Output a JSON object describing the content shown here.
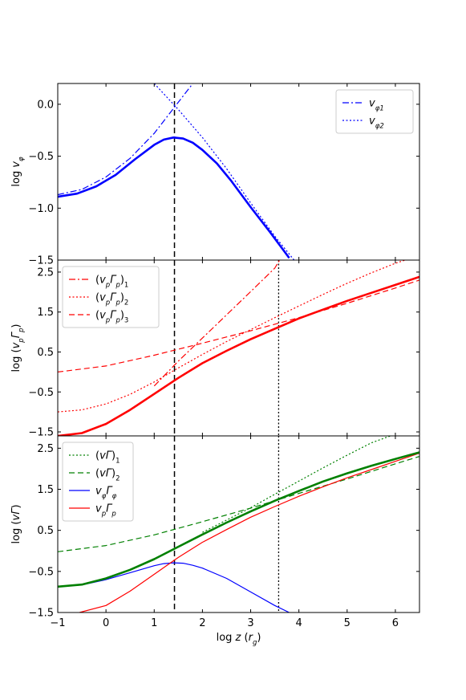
{
  "x_axis": {
    "label": "log z (r_g)",
    "label_parts": {
      "pre": "log ",
      "var": "z",
      "open": " (",
      "sym": "r",
      "sub": "g",
      "close": ")"
    },
    "range": [
      -1,
      6.5
    ],
    "ticks": [
      -1,
      0,
      1,
      2,
      3,
      4,
      5,
      6
    ],
    "tick_labels": [
      "−1",
      "0",
      "1",
      "2",
      "3",
      "4",
      "5",
      "6"
    ]
  },
  "chart_data": [
    {
      "type": "line",
      "ylabel": "log v_φ",
      "ylabel_parts": {
        "pre": "log ",
        "sym": "v",
        "sub": "φ"
      },
      "ylim": [
        -1.5,
        0.2
      ],
      "yticks": [
        -1.5,
        -1.0,
        -0.5,
        0.0
      ],
      "ytick_labels": [
        "−1.5",
        "−1.0",
        "−0.5",
        "0.0"
      ],
      "legend": "upper-right",
      "series": [
        {
          "name": "(v_φ)_1",
          "legend_label": {
            "sym": "v",
            "sub1": "φ",
            "sub2": "1"
          },
          "style": "dashdot",
          "color": "#0000ff",
          "width": 1.2,
          "x": [
            -1,
            -0.5,
            0,
            0.5,
            1,
            1.4,
            1.7,
            2.0
          ],
          "y": [
            -0.87,
            -0.82,
            -0.7,
            -0.52,
            -0.28,
            -0.04,
            0.14,
            0.32
          ]
        },
        {
          "name": "(v_φ)_2",
          "legend_label": {
            "sym": "v",
            "sub1": "φ",
            "sub2": "2"
          },
          "style": "dotted",
          "color": "#0000ff",
          "width": 1.2,
          "x": [
            1.0,
            1.5,
            2.0,
            2.5,
            3.0,
            3.5,
            3.9
          ],
          "y": [
            0.2,
            -0.05,
            -0.32,
            -0.62,
            -0.95,
            -1.27,
            -1.5
          ]
        },
        {
          "name": "",
          "style": "solid",
          "color": "#0000ff",
          "width": 2.6,
          "x": [
            -1,
            -0.6,
            -0.2,
            0.2,
            0.6,
            1.0,
            1.2,
            1.4,
            1.6,
            1.8,
            2.0,
            2.3,
            2.6,
            3.0,
            3.4,
            3.8
          ],
          "y": [
            -0.89,
            -0.86,
            -0.79,
            -0.68,
            -0.53,
            -0.39,
            -0.34,
            -0.32,
            -0.33,
            -0.37,
            -0.44,
            -0.57,
            -0.74,
            -0.99,
            -1.23,
            -1.48
          ]
        }
      ],
      "vlines": [
        {
          "x": 1.42,
          "style": "dashed",
          "color": "#000000",
          "width": 1.5
        }
      ]
    },
    {
      "type": "line",
      "ylabel": "log (v_pΓ_p)",
      "ylabel_parts": {
        "pre": "log (",
        "sym": "v",
        "sub": "p",
        "sym2": "Γ",
        "sub2": "p",
        "close": ")"
      },
      "ylim": [
        -1.6,
        2.8
      ],
      "yticks": [
        -1.5,
        -0.5,
        0.5,
        1.5,
        2.5
      ],
      "ytick_labels": [
        "−1.5",
        "−0.5",
        "0.5",
        "1.5",
        "2.5"
      ],
      "legend": "upper-left",
      "series": [
        {
          "name": "(v_pΓ_p)_1",
          "legend_label": {
            "sym": "v",
            "sub1": "p",
            "sym2": "Γ",
            "sub2": "p",
            "sub3": "1"
          },
          "style": "dashdot",
          "color": "#ff0000",
          "width": 1.2,
          "x": [
            1.0,
            1.5,
            2.0,
            2.5,
            3.0,
            3.5,
            3.6
          ],
          "y": [
            -0.35,
            0.27,
            0.85,
            1.43,
            2.01,
            2.6,
            2.8
          ]
        },
        {
          "name": "(v_pΓ_p)_2",
          "legend_label": {
            "sym": "v",
            "sub1": "p",
            "sym2": "Γ",
            "sub2": "p",
            "sub3": "2"
          },
          "style": "dotted",
          "color": "#ff0000",
          "width": 1.2,
          "x": [
            -1,
            -0.5,
            0,
            0.5,
            1,
            1.5,
            2,
            2.5,
            3,
            3.5,
            4,
            4.5,
            5,
            5.5,
            6,
            6.2
          ],
          "y": [
            -1.0,
            -0.95,
            -0.8,
            -0.56,
            -0.25,
            0.1,
            0.44,
            0.76,
            1.06,
            1.36,
            1.65,
            1.94,
            2.22,
            2.48,
            2.72,
            2.8
          ]
        },
        {
          "name": "(v_pΓ_p)_3",
          "legend_label": {
            "sym": "v",
            "sub1": "p",
            "sym2": "Γ",
            "sub2": "p",
            "sub3": "3"
          },
          "style": "dashed",
          "color": "#ff0000",
          "width": 1.2,
          "x": [
            -1,
            0,
            1,
            2,
            3,
            4,
            5,
            6,
            6.5
          ],
          "y": [
            0.0,
            0.15,
            0.42,
            0.72,
            1.03,
            1.36,
            1.72,
            2.1,
            2.3
          ]
        },
        {
          "name": "",
          "style": "solid",
          "color": "#ff0000",
          "width": 2.6,
          "x": [
            -1,
            -0.5,
            0,
            0.5,
            1,
            1.5,
            2,
            2.5,
            3,
            3.5,
            4,
            4.5,
            5,
            5.5,
            6,
            6.5
          ],
          "y": [
            -1.6,
            -1.53,
            -1.3,
            -0.95,
            -0.55,
            -0.15,
            0.22,
            0.53,
            0.82,
            1.08,
            1.34,
            1.56,
            1.78,
            1.98,
            2.18,
            2.38
          ]
        }
      ],
      "vlines": [
        {
          "x": 1.42,
          "style": "dashed",
          "color": "#000000",
          "width": 1.5
        },
        {
          "x": 3.58,
          "style": "dotted",
          "color": "#000000",
          "width": 1.3
        }
      ]
    },
    {
      "type": "line",
      "ylabel": "log (vΓ)",
      "ylabel_parts": {
        "pre": "log (",
        "sym": "v",
        "sym2": "Γ",
        "close": ")"
      },
      "ylim": [
        -1.5,
        2.8
      ],
      "yticks": [
        -1.5,
        -0.5,
        0.5,
        1.5,
        2.5
      ],
      "ytick_labels": [
        "−1.5",
        "−0.5",
        "0.5",
        "1.5",
        "2.5"
      ],
      "legend": "upper-left",
      "series": [
        {
          "name": "(vΓ)_1",
          "legend_label": {
            "sym": "v",
            "sym2": "Γ",
            "sub3": "1"
          },
          "style": "dotted",
          "color": "#008000",
          "width": 1.2,
          "x": [
            2.0,
            2.5,
            3.0,
            3.5,
            4.0,
            4.5,
            5.0,
            5.5,
            5.9
          ],
          "y": [
            0.45,
            0.75,
            1.05,
            1.38,
            1.7,
            2.02,
            2.33,
            2.63,
            2.8
          ]
        },
        {
          "name": "(vΓ)_2",
          "legend_label": {
            "sym": "v",
            "sym2": "Γ",
            "sub3": "2"
          },
          "style": "dashed",
          "color": "#008000",
          "width": 1.2,
          "x": [
            -1,
            0,
            1,
            2,
            3,
            4,
            5,
            6,
            6.5
          ],
          "y": [
            -0.02,
            0.13,
            0.39,
            0.71,
            1.04,
            1.4,
            1.75,
            2.12,
            2.3
          ]
        },
        {
          "name": "v_φΓ_φ",
          "legend_label": {
            "sym": "v",
            "sub1": "φ",
            "sym2": "Γ",
            "sub2": "φ"
          },
          "style": "solid",
          "color": "#0000ff",
          "width": 1.2,
          "x": [
            -1,
            -0.5,
            0,
            0.5,
            1,
            1.2,
            1.4,
            1.6,
            1.8,
            2.0,
            2.5,
            3.0,
            3.5,
            3.8
          ],
          "y": [
            -0.87,
            -0.83,
            -0.7,
            -0.53,
            -0.36,
            -0.31,
            -0.29,
            -0.3,
            -0.35,
            -0.42,
            -0.67,
            -1.0,
            -1.33,
            -1.5
          ]
        },
        {
          "name": "v_pΓ_p",
          "legend_label": {
            "sym": "v",
            "sub1": "p",
            "sym2": "Γ",
            "sub2": "p"
          },
          "style": "solid",
          "color": "#ff0000",
          "width": 1.2,
          "x": [
            -0.55,
            0,
            0.5,
            1,
            1.5,
            2,
            2.5,
            3,
            3.5,
            4,
            4.5,
            5,
            5.5,
            6,
            6.5
          ],
          "y": [
            -1.5,
            -1.33,
            -0.98,
            -0.57,
            -0.16,
            0.21,
            0.52,
            0.82,
            1.08,
            1.33,
            1.56,
            1.78,
            1.98,
            2.18,
            2.38
          ]
        },
        {
          "name": "",
          "style": "solid",
          "color": "#008000",
          "width": 2.6,
          "x": [
            -1,
            -0.5,
            0,
            0.5,
            1,
            1.5,
            2,
            2.5,
            3,
            3.5,
            4,
            4.5,
            5,
            5.5,
            6,
            6.5
          ],
          "y": [
            -0.87,
            -0.82,
            -0.67,
            -0.46,
            -0.2,
            0.1,
            0.4,
            0.69,
            0.96,
            1.22,
            1.46,
            1.69,
            1.89,
            2.07,
            2.24,
            2.4
          ]
        }
      ],
      "vlines": [
        {
          "x": 1.42,
          "style": "dashed",
          "color": "#000000",
          "width": 1.5
        },
        {
          "x": 3.58,
          "style": "dotted",
          "color": "#000000",
          "width": 1.3
        }
      ]
    }
  ]
}
